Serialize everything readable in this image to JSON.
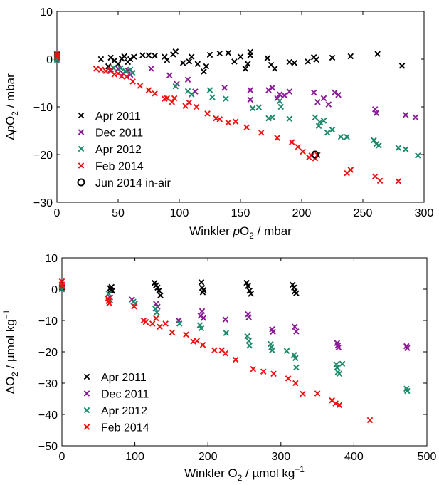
{
  "colors": {
    "Apr 2011": "#000000",
    "Dec 2011": "#8b1a96",
    "Apr 2012": "#1a8a6a",
    "Feb 2014": "#ee1111",
    "Jun 2014 in-air": "#000000"
  },
  "chart_data": [
    {
      "type": "scatter",
      "title": "",
      "xlabel": "Winkler pO2 / mbar",
      "ylabel": "ΔpO2 / mbar",
      "xlim": [
        0,
        300
      ],
      "ylim": [
        -30,
        10
      ],
      "xticks": [
        "0",
        "50",
        "100",
        "150",
        "200",
        "250",
        "300"
      ],
      "yticks": [
        "10",
        "0",
        "−10",
        "−20",
        "−30"
      ],
      "grid": false,
      "legend_position": "bottom-left",
      "series": [
        {
          "name": "Apr 2011",
          "marker": "x",
          "points": [
            [
              0,
              0.3
            ],
            [
              0,
              0.6
            ],
            [
              0,
              1
            ],
            [
              36,
              0
            ],
            [
              42,
              -1.5
            ],
            [
              44,
              0.3
            ],
            [
              47,
              -0.3
            ],
            [
              50,
              -1
            ],
            [
              53,
              0.1
            ],
            [
              55,
              0.6
            ],
            [
              58,
              -0.6
            ],
            [
              60,
              0
            ],
            [
              63,
              0.5
            ],
            [
              70,
              0.8
            ],
            [
              75,
              0.8
            ],
            [
              80,
              0.7
            ],
            [
              88,
              0.5
            ],
            [
              90,
              -0.2
            ],
            [
              95,
              1
            ],
            [
              97,
              1.6
            ],
            [
              103,
              -0.8
            ],
            [
              108,
              -0.5
            ],
            [
              110,
              0.5
            ],
            [
              115,
              -1
            ],
            [
              120,
              -2.6
            ],
            [
              122,
              -1.5
            ],
            [
              125,
              0.9
            ],
            [
              133,
              1.2
            ],
            [
              140,
              1.3
            ],
            [
              145,
              -0.5
            ],
            [
              150,
              0.5
            ],
            [
              154,
              -2
            ],
            [
              156,
              -1
            ],
            [
              158,
              1.5
            ],
            [
              158,
              0.8
            ],
            [
              172,
              0.2
            ],
            [
              175,
              -1.2
            ],
            [
              178,
              -2
            ],
            [
              190,
              -0.6
            ],
            [
              194,
              -0.8
            ],
            [
              205,
              -0.5
            ],
            [
              210,
              0.4
            ],
            [
              212,
              -0.1
            ],
            [
              225,
              0.3
            ],
            [
              240,
              0.6
            ],
            [
              262,
              1.1
            ],
            [
              282,
              -1.4
            ]
          ]
        },
        {
          "name": "Dec 2011",
          "marker": "x",
          "points": [
            [
              0,
              0
            ],
            [
              44,
              -2.5
            ],
            [
              50,
              -2
            ],
            [
              54,
              -3
            ],
            [
              58,
              -2.4
            ],
            [
              60,
              -3.3
            ],
            [
              77,
              -2
            ],
            [
              92,
              -3.4
            ],
            [
              98,
              -5.2
            ],
            [
              107,
              -4.3
            ],
            [
              113,
              -6.8
            ],
            [
              137,
              -6
            ],
            [
              158,
              -6.5
            ],
            [
              158,
              -8.5
            ],
            [
              173,
              -6.5
            ],
            [
              176,
              -6
            ],
            [
              180,
              -8.2
            ],
            [
              182,
              -7.4
            ],
            [
              186,
              -7.6
            ],
            [
              190,
              -6.8
            ],
            [
              210,
              -7
            ],
            [
              213,
              -9
            ],
            [
              218,
              -8.2
            ],
            [
              222,
              -9.5
            ],
            [
              227,
              -7
            ],
            [
              230,
              -7.5
            ],
            [
              260,
              -10.5
            ],
            [
              261,
              -11.3
            ],
            [
              285,
              -11.7
            ],
            [
              293,
              -12.2
            ]
          ]
        },
        {
          "name": "Apr 2012",
          "marker": "x",
          "points": [
            [
              0,
              0.2
            ],
            [
              0,
              -0.3
            ],
            [
              46,
              -1.8
            ],
            [
              52,
              -1.9
            ],
            [
              56,
              -2.5
            ],
            [
              60,
              -2.2
            ],
            [
              62,
              -2.9
            ],
            [
              97,
              -5.7
            ],
            [
              107,
              -6.7
            ],
            [
              110,
              -7.4
            ],
            [
              125,
              -6.5
            ],
            [
              127,
              -8
            ],
            [
              138,
              -8.3
            ],
            [
              160,
              -10.3
            ],
            [
              165,
              -10.1
            ],
            [
              173,
              -12.4
            ],
            [
              176,
              -12.2
            ],
            [
              182,
              -8.8
            ],
            [
              183,
              -10
            ],
            [
              190,
              -12.5
            ],
            [
              211,
              -12.2
            ],
            [
              214,
              -14
            ],
            [
              215,
              -13.2
            ],
            [
              218,
              -12.9
            ],
            [
              221,
              -15.4
            ],
            [
              225,
              -14.8
            ],
            [
              232,
              -16.3
            ],
            [
              237,
              -16.3
            ],
            [
              259,
              -17
            ],
            [
              261,
              -17.8
            ],
            [
              263,
              -18.1
            ],
            [
              279,
              -18.6
            ],
            [
              285,
              -18.9
            ],
            [
              295,
              -20.2
            ]
          ]
        },
        {
          "name": "Feb 2014",
          "marker": "x",
          "points": [
            [
              0,
              1.2
            ],
            [
              0,
              0.8
            ],
            [
              0,
              0.4
            ],
            [
              32,
              -2
            ],
            [
              36,
              -2.2
            ],
            [
              40,
              -2.5
            ],
            [
              44,
              -2.2
            ],
            [
              47,
              -3.2
            ],
            [
              50,
              -3
            ],
            [
              53,
              -3.6
            ],
            [
              57,
              -3.7
            ],
            [
              62,
              -4.7
            ],
            [
              68,
              -5.6
            ],
            [
              75,
              -6.5
            ],
            [
              80,
              -7.2
            ],
            [
              88,
              -8.3
            ],
            [
              90,
              -8.2
            ],
            [
              94,
              -9
            ],
            [
              96,
              -8.2
            ],
            [
              105,
              -9.8
            ],
            [
              108,
              -9.1
            ],
            [
              114,
              -10
            ],
            [
              123,
              -11.4
            ],
            [
              130,
              -12.4
            ],
            [
              133,
              -12.6
            ],
            [
              140,
              -13.3
            ],
            [
              146,
              -13.1
            ],
            [
              155,
              -14.3
            ],
            [
              167,
              -15.4
            ],
            [
              180,
              -16.5
            ],
            [
              192,
              -17.4
            ],
            [
              197,
              -18.4
            ],
            [
              201,
              -19.4
            ],
            [
              206,
              -20.6
            ],
            [
              208,
              -20.2
            ],
            [
              211,
              -20.8
            ],
            [
              213,
              -20.1
            ],
            [
              237,
              -23.9
            ],
            [
              240,
              -23.2
            ],
            [
              260,
              -24.6
            ],
            [
              264,
              -25.5
            ],
            [
              279,
              -25.6
            ]
          ]
        },
        {
          "name": "Jun 2014 in-air",
          "marker": "o",
          "points": [
            [
              211,
              -20
            ]
          ]
        }
      ]
    },
    {
      "type": "scatter",
      "title": "",
      "xlabel": "Winkler O2 / µmol kg−1",
      "ylabel": "ΔO2 / µmol kg−1",
      "xlim": [
        0,
        500
      ],
      "ylim": [
        -50,
        10
      ],
      "xticks": [
        "0",
        "100",
        "200",
        "300",
        "400",
        "500"
      ],
      "yticks": [
        "10",
        "0",
        "−10",
        "−20",
        "−30",
        "−40",
        "−50"
      ],
      "grid": false,
      "legend_position": "bottom-left",
      "series": [
        {
          "name": "Apr 2011",
          "marker": "x",
          "points": [
            [
              0,
              0
            ],
            [
              0,
              0.5
            ],
            [
              66,
              0.3
            ],
            [
              67,
              -0.3
            ],
            [
              68,
              0.7
            ],
            [
              69,
              -0.5
            ],
            [
              127,
              2
            ],
            [
              129,
              1.2
            ],
            [
              131,
              0.5
            ],
            [
              133,
              -0.5
            ],
            [
              135,
              -2
            ],
            [
              191,
              2.2
            ],
            [
              192,
              0.4
            ],
            [
              193,
              -1
            ],
            [
              194,
              -0.3
            ],
            [
              253,
              2
            ],
            [
              255,
              1
            ],
            [
              257,
              -0.5
            ],
            [
              259,
              -1.5
            ],
            [
              316,
              1.4
            ],
            [
              318,
              0.5
            ],
            [
              319,
              -0.7
            ],
            [
              321,
              -1.3
            ]
          ]
        },
        {
          "name": "Dec 2011",
          "marker": "x",
          "points": [
            [
              0,
              0
            ],
            [
              66,
              -2.6
            ],
            [
              96,
              -3.3
            ],
            [
              129,
              -4.7
            ],
            [
              131,
              -5.6
            ],
            [
              160,
              -10
            ],
            [
              190,
              -8.5
            ],
            [
              192,
              -7
            ],
            [
              194,
              -9.2
            ],
            [
              224,
              -9.7
            ],
            [
              255,
              -8
            ],
            [
              256,
              -9
            ],
            [
              288,
              -12.8
            ],
            [
              289,
              -13.6
            ],
            [
              319,
              -12
            ],
            [
              321,
              -13.5
            ],
            [
              377,
              -17.2
            ],
            [
              378,
              -18
            ],
            [
              379,
              -18.6
            ],
            [
              472,
              -18.2
            ],
            [
              473,
              -18.8
            ]
          ]
        },
        {
          "name": "Apr 2012",
          "marker": "x",
          "points": [
            [
              0,
              0
            ],
            [
              64,
              -1.4
            ],
            [
              66,
              -3.5
            ],
            [
              98,
              -4
            ],
            [
              100,
              -4.6
            ],
            [
              128,
              -6.2
            ],
            [
              130,
              -7.4
            ],
            [
              161,
              -11
            ],
            [
              189,
              -11.5
            ],
            [
              191,
              -12.5
            ],
            [
              225,
              -14
            ],
            [
              254,
              -15
            ],
            [
              256,
              -16.5
            ],
            [
              257,
              -18
            ],
            [
              286,
              -17.5
            ],
            [
              287,
              -18.5
            ],
            [
              288,
              -19.5
            ],
            [
              308,
              -19.7
            ],
            [
              318,
              -21
            ],
            [
              320,
              -22
            ],
            [
              321,
              -25
            ],
            [
              376,
              -24
            ],
            [
              377,
              -25
            ],
            [
              378,
              -26.5
            ],
            [
              380,
              -27
            ],
            [
              384,
              -23.8
            ],
            [
              472,
              -31.8
            ],
            [
              473,
              -32.5
            ]
          ]
        },
        {
          "name": "Feb 2014",
          "marker": "x",
          "points": [
            [
              0,
              0.8
            ],
            [
              0,
              1.5
            ],
            [
              0,
              2.5
            ],
            [
              63,
              -3
            ],
            [
              64,
              -3.8
            ],
            [
              65,
              -4.5
            ],
            [
              99,
              -5.5
            ],
            [
              112,
              -10
            ],
            [
              115,
              -10.5
            ],
            [
              124,
              -11
            ],
            [
              129,
              -9.3
            ],
            [
              134,
              -12
            ],
            [
              142,
              -11
            ],
            [
              151,
              -13.8
            ],
            [
              170,
              -14.5
            ],
            [
              180,
              -16.7
            ],
            [
              185,
              -16.5
            ],
            [
              193,
              -17.8
            ],
            [
              209,
              -19.5
            ],
            [
              219,
              -19.5
            ],
            [
              224,
              -20.5
            ],
            [
              238,
              -22.5
            ],
            [
              262,
              -25.5
            ],
            [
              276,
              -26.3
            ],
            [
              290,
              -27
            ],
            [
              310,
              -28.5
            ],
            [
              320,
              -30
            ],
            [
              330,
              -33.4
            ],
            [
              350,
              -33.3
            ],
            [
              370,
              -35.5
            ],
            [
              375,
              -36.5
            ],
            [
              380,
              -37
            ],
            [
              422,
              -41.8
            ]
          ]
        }
      ]
    }
  ]
}
